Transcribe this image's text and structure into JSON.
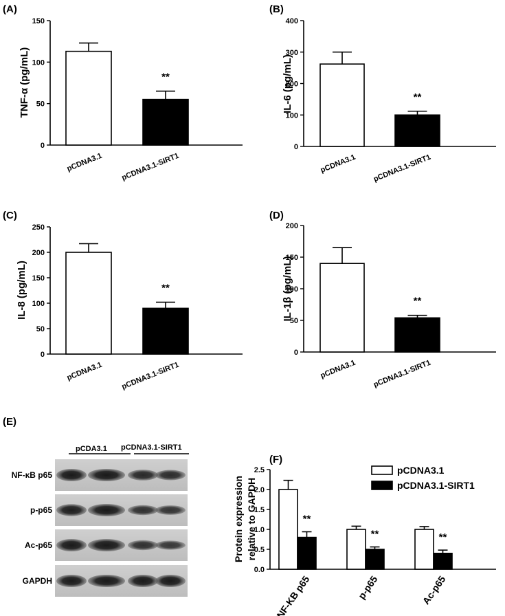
{
  "chart_data": [
    {
      "panel": "(A)",
      "type": "bar",
      "categories": [
        "pCDNA3.1",
        "pCDNA3.1-SIRT1"
      ],
      "values": [
        113,
        55
      ],
      "errors": [
        10,
        10
      ],
      "significance": [
        "",
        "**"
      ],
      "colors": [
        "#ffffff",
        "#000000"
      ],
      "ylabel": "TNF-α (pg/mL)",
      "ylim": [
        0,
        150
      ],
      "yticks": [
        "0",
        "50",
        "100",
        "150"
      ]
    },
    {
      "panel": "(B)",
      "type": "bar",
      "categories": [
        "pCDNA3.1",
        "pCDNA3.1-SIRT1"
      ],
      "values": [
        262,
        100
      ],
      "errors": [
        38,
        12
      ],
      "significance": [
        "",
        "**"
      ],
      "colors": [
        "#ffffff",
        "#000000"
      ],
      "ylabel": "IL-6 (pg/mL)",
      "ylim": [
        0,
        400
      ],
      "yticks": [
        "0",
        "100",
        "200",
        "300",
        "400"
      ]
    },
    {
      "panel": "(C)",
      "type": "bar",
      "categories": [
        "pCDNA3.1",
        "pCDNA3.1-SIRT1"
      ],
      "values": [
        200,
        90
      ],
      "errors": [
        17,
        12
      ],
      "significance": [
        "",
        "**"
      ],
      "colors": [
        "#ffffff",
        "#000000"
      ],
      "ylabel": "IL-8 (pg/mL)",
      "ylim": [
        0,
        250
      ],
      "yticks": [
        "0",
        "50",
        "100",
        "150",
        "200",
        "250"
      ]
    },
    {
      "panel": "(D)",
      "type": "bar",
      "categories": [
        "pCDNA3.1",
        "pCDNA3.1-SIRT1"
      ],
      "values": [
        140,
        54
      ],
      "errors": [
        25,
        4
      ],
      "significance": [
        "",
        "**"
      ],
      "colors": [
        "#ffffff",
        "#000000"
      ],
      "ylabel": "IL-1β (pg/mL)",
      "ylim": [
        0,
        200
      ],
      "yticks": [
        "0",
        "50",
        "100",
        "150",
        "200"
      ]
    },
    {
      "panel": "(F)",
      "type": "bar",
      "categories": [
        "NF-KB p65",
        "p-p65",
        "Ac-p65"
      ],
      "series": [
        {
          "name": "pCDNA3.1",
          "color": "#ffffff",
          "values": [
            2.0,
            1.0,
            1.0
          ],
          "errors": [
            0.23,
            0.08,
            0.07
          ]
        },
        {
          "name": "pCDNA3.1-SIRT1",
          "color": "#000000",
          "values": [
            0.8,
            0.5,
            0.4
          ],
          "errors": [
            0.14,
            0.06,
            0.08
          ]
        }
      ],
      "significance": [
        "**",
        "**",
        "**"
      ],
      "ylabel": [
        "Protein expression",
        "relative to GAPDH"
      ],
      "ylim": [
        0,
        2.5
      ],
      "yticks": [
        "0.0",
        "0.5",
        "1.0",
        "1.5",
        "2.0",
        "2.5"
      ],
      "legend": "top-right"
    }
  ],
  "blot": {
    "panel": "(E)",
    "groups": [
      "pCDA3.1",
      "pCDNA3.1-SIRT1"
    ],
    "rows": [
      "NF-κB p65",
      "p-p65",
      "Ac-p65",
      "GAPDH"
    ]
  }
}
